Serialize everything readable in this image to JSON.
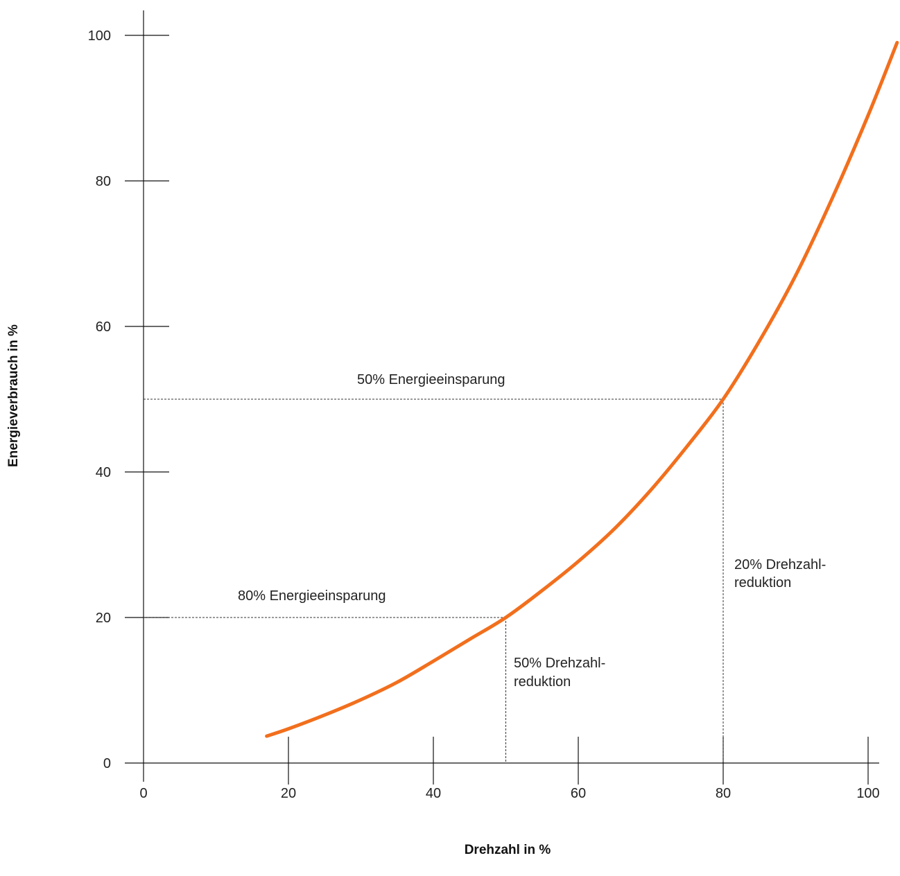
{
  "chart_data": {
    "type": "line",
    "xlabel": "Drehzahl in %",
    "ylabel": "Energieverbrauch in  %",
    "xlim": [
      0,
      104
    ],
    "ylim": [
      0,
      100
    ],
    "x_ticks": [
      0,
      20,
      40,
      60,
      80,
      100
    ],
    "y_ticks": [
      0,
      20,
      40,
      60,
      80,
      100
    ],
    "grid": false,
    "line_color": "#f26f1d",
    "series": [
      {
        "x": [
          17,
          20,
          25,
          30,
          35,
          40,
          45,
          50,
          55,
          60,
          65,
          70,
          75,
          80,
          85,
          90,
          95,
          100,
          104
        ],
        "y": [
          3.7,
          4.7,
          6.6,
          8.7,
          11.1,
          14.0,
          17.0,
          20.0,
          23.7,
          27.7,
          32.2,
          37.5,
          43.5,
          50.0,
          58.0,
          67.0,
          77.5,
          89.0,
          99.0
        ]
      }
    ],
    "reference_points": [
      {
        "x": 50,
        "y": 20
      },
      {
        "x": 80,
        "y": 50
      }
    ],
    "annotations": {
      "savings_50": "50% Energieeinsparung",
      "savings_80": "80% Energieeinsparung",
      "reduction_20_line1": "20% Drehzahl-",
      "reduction_20_line2": "reduktion",
      "reduction_50_line1": "50% Drehzahl-",
      "reduction_50_line2": "reduktion"
    }
  }
}
